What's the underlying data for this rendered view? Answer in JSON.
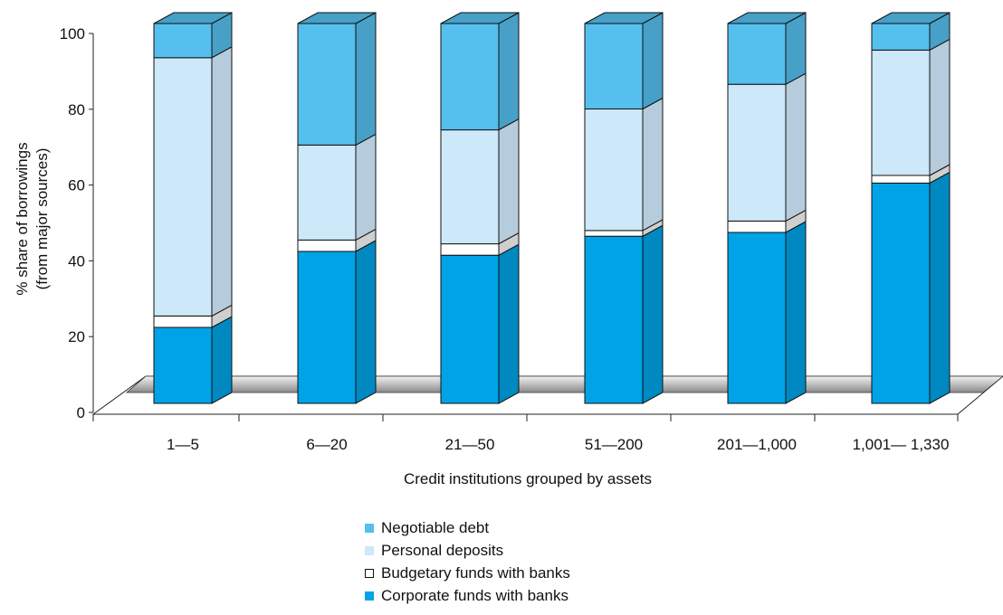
{
  "chart_data": {
    "type": "bar",
    "stacked": true,
    "three_d": true,
    "categories": [
      "1—5",
      "6—20",
      "21—50",
      "51—200",
      "201—1,000",
      "1,001— 1,330"
    ],
    "series": [
      {
        "name": "Corporate funds with banks",
        "values": [
          20,
          40,
          39,
          44,
          45,
          58
        ],
        "color": "#00a3e6"
      },
      {
        "name": "Budgetary funds with banks",
        "values": [
          3,
          3,
          3,
          1.5,
          3,
          2
        ],
        "color": "#ffffff"
      },
      {
        "name": "Personal deposits",
        "values": [
          68,
          25,
          30,
          32,
          36,
          33
        ],
        "color": "#cde8f8"
      },
      {
        "name": "Negotiable debt",
        "values": [
          9,
          32,
          28,
          22.5,
          16,
          7
        ],
        "color": "#55bfee"
      }
    ],
    "yticks": [
      0,
      20,
      40,
      60,
      80,
      100
    ],
    "ylim": [
      0,
      100
    ],
    "ylabel": "% share of borrowings\n(from major sources)",
    "xlabel": "Credit institutions grouped by assets",
    "legend_order": [
      "Negotiable debt",
      "Personal deposits",
      "Budgetary funds with banks",
      "Corporate funds with banks"
    ],
    "legend_position": "bottom-center",
    "grid": false
  }
}
